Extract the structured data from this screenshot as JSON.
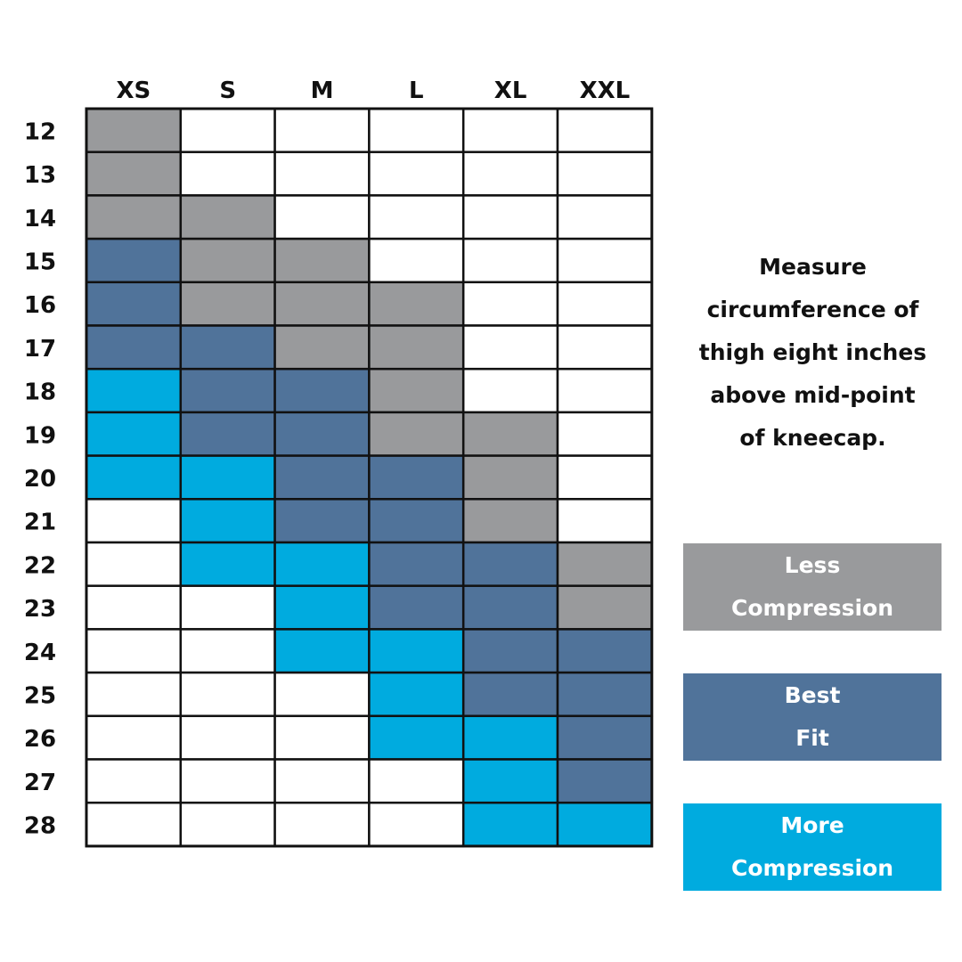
{
  "instructions": [
    "Measure",
    "circumference of",
    "thigh eight inches",
    "above mid-point",
    "of kneecap."
  ],
  "legend": [
    {
      "key": "less",
      "lines": [
        "Less",
        "Compression"
      ],
      "color": "#999a9c"
    },
    {
      "key": "best",
      "lines": [
        "Best",
        "Fit"
      ],
      "color": "#50739a"
    },
    {
      "key": "more",
      "lines": [
        "More",
        "Compression"
      ],
      "color": "#00abdf"
    }
  ],
  "chart_data": {
    "type": "table",
    "columns": [
      "XS",
      "S",
      "M",
      "L",
      "XL",
      "XXL"
    ],
    "rows": [
      "12",
      "13",
      "14",
      "15",
      "16",
      "17",
      "18",
      "19",
      "20",
      "21",
      "22",
      "23",
      "24",
      "25",
      "26",
      "27",
      "28"
    ],
    "cells": [
      [
        "less",
        "",
        "",
        "",
        "",
        ""
      ],
      [
        "less",
        "",
        "",
        "",
        "",
        ""
      ],
      [
        "less",
        "less",
        "",
        "",
        "",
        ""
      ],
      [
        "best",
        "less",
        "less",
        "",
        "",
        ""
      ],
      [
        "best",
        "less",
        "less",
        "less",
        "",
        ""
      ],
      [
        "best",
        "best",
        "less",
        "less",
        "",
        ""
      ],
      [
        "more",
        "best",
        "best",
        "less",
        "",
        ""
      ],
      [
        "more",
        "best",
        "best",
        "less",
        "less",
        ""
      ],
      [
        "more",
        "more",
        "best",
        "best",
        "less",
        ""
      ],
      [
        "",
        "more",
        "best",
        "best",
        "less",
        ""
      ],
      [
        "",
        "more",
        "more",
        "best",
        "best",
        "less"
      ],
      [
        "",
        "",
        "more",
        "best",
        "best",
        "less"
      ],
      [
        "",
        "",
        "more",
        "more",
        "best",
        "best"
      ],
      [
        "",
        "",
        "",
        "more",
        "best",
        "best"
      ],
      [
        "",
        "",
        "",
        "more",
        "more",
        "best"
      ],
      [
        "",
        "",
        "",
        "",
        "more",
        "best"
      ],
      [
        "",
        "",
        "",
        "",
        "more",
        "more"
      ]
    ]
  }
}
